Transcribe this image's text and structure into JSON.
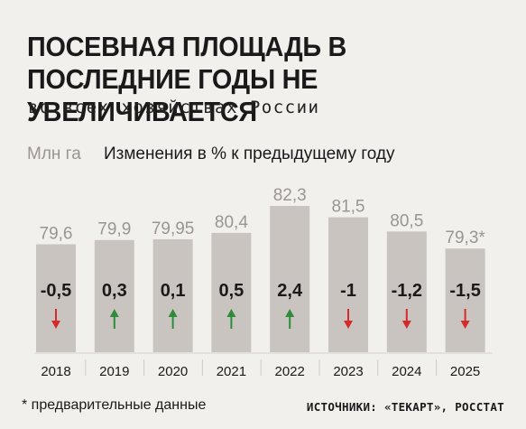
{
  "title": "ПОСЕВНАЯ ПЛОЩАДЬ В ПОСЛЕДНИЕ ГОДЫ НЕ УВЕЛИЧИВАЕТСЯ",
  "subtitle": "во всех хозяйствах России",
  "unit_label": "Млн га",
  "change_label": "Изменения в % к предыдущему году",
  "footnote": "* предварительные данные",
  "sources": "ИСТОЧНИКИ: «ТЕКАРТ», РОССТАТ",
  "colors": {
    "bar": "#c9c4bf",
    "value_label": "#9a9590",
    "up": "#2e8b3a",
    "down": "#d42a2a"
  },
  "chart_data": {
    "type": "bar",
    "categories": [
      "2018",
      "2019",
      "2020",
      "2021",
      "2022",
      "2023",
      "2024",
      "2025"
    ],
    "values": [
      79.6,
      79.9,
      79.95,
      80.4,
      82.3,
      81.5,
      80.5,
      79.3
    ],
    "value_labels": [
      "79,6",
      "79,9",
      "79,95",
      "80,4",
      "82,3",
      "81,5",
      "80,5",
      "79,3*"
    ],
    "changes": [
      -0.5,
      0.3,
      0.1,
      0.5,
      2.4,
      -1,
      -1.2,
      -1.5
    ],
    "change_labels": [
      "-0,5",
      "0,3",
      "0,1",
      "0,5",
      "2,4",
      "-1",
      "-1,2",
      "-1,5"
    ],
    "directions": [
      "down",
      "up",
      "up",
      "up",
      "up",
      "down",
      "down",
      "down"
    ],
    "xlabel": "",
    "ylabel": "Млн га",
    "ylim": [
      72,
      82.3
    ],
    "grid": false,
    "legend": "none"
  }
}
